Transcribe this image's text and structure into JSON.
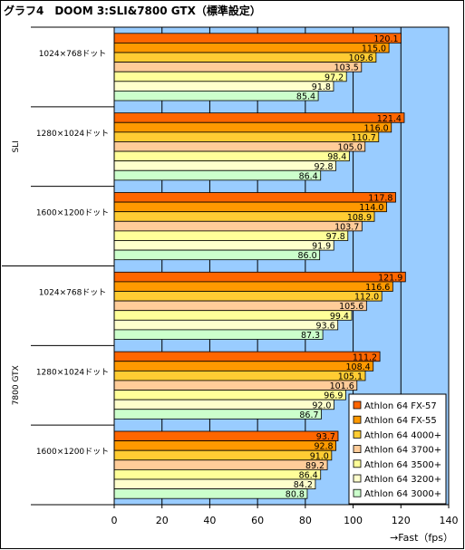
{
  "chart_data": {
    "type": "bar",
    "orientation": "horizontal",
    "title": "グラフ4　DOOM 3:SLI&7800 GTX（標準設定）",
    "xlabel": "→Fast（fps）",
    "xlim": [
      0,
      140
    ],
    "xticks": [
      0,
      20,
      40,
      60,
      80,
      100,
      120,
      140
    ],
    "grid": true,
    "legend_position": "bottom-right",
    "plot_background": "#99ccff",
    "group_labels": [
      "SLI",
      "7800 GTX"
    ],
    "categories": [
      "1024×768ドット",
      "1280×1024ドット",
      "1600×1200ドット",
      "1024×768ドット",
      "1280×1024ドット",
      "1600×1200ドット"
    ],
    "series": [
      {
        "name": "Athlon 64 FX-57",
        "color": "#ff6600",
        "values": [
          120.1,
          121.4,
          117.8,
          121.9,
          111.2,
          93.7
        ]
      },
      {
        "name": "Athlon 64 FX-55",
        "color": "#ff9900",
        "values": [
          115.0,
          116.0,
          114.0,
          116.6,
          108.4,
          92.8
        ]
      },
      {
        "name": "Athlon 64 4000+",
        "color": "#ffcc33",
        "values": [
          109.6,
          110.7,
          108.9,
          112.0,
          105.1,
          91.0
        ]
      },
      {
        "name": "Athlon 64 3700+",
        "color": "#ffcc99",
        "values": [
          103.5,
          105.0,
          103.7,
          105.6,
          101.6,
          89.2
        ]
      },
      {
        "name": "Athlon 64 3500+",
        "color": "#ffff99",
        "values": [
          97.2,
          98.4,
          97.8,
          99.4,
          96.9,
          86.4
        ]
      },
      {
        "name": "Athlon 64 3200+",
        "color": "#ffffcc",
        "values": [
          91.8,
          92.8,
          91.9,
          93.6,
          92.0,
          84.2
        ]
      },
      {
        "name": "Athlon 64 3000+",
        "color": "#ccffcc",
        "values": [
          85.4,
          86.4,
          86.0,
          87.3,
          86.7,
          80.8
        ]
      }
    ]
  }
}
